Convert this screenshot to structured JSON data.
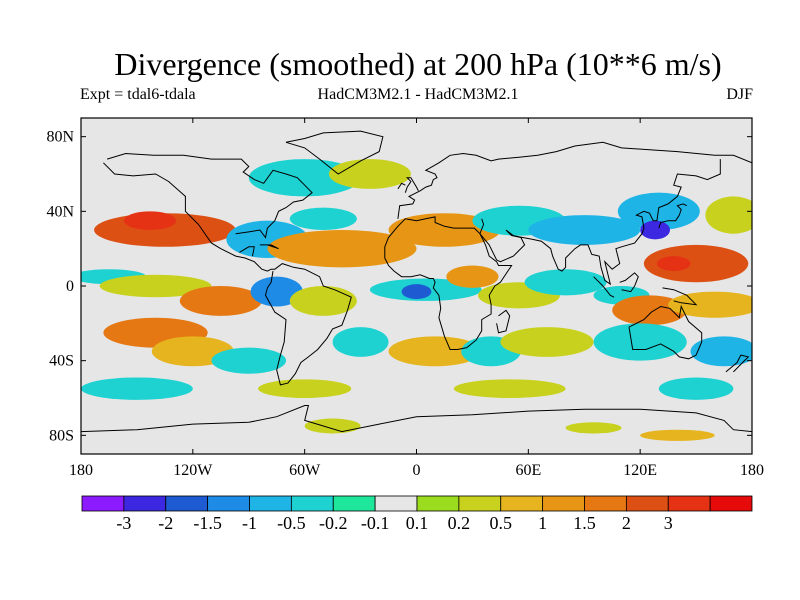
{
  "title": "Divergence (smoothed) at 200 hPa (10**6 m/s)",
  "experiment": "Expt = tdal6-tdala",
  "models": "HadCM3M2.1 - HadCM3M2.1",
  "season": "DJF",
  "axes": {
    "lat_ticks": [
      {
        "value": 80,
        "label": "80N"
      },
      {
        "value": 40,
        "label": "40N"
      },
      {
        "value": 0,
        "label": "0"
      },
      {
        "value": -40,
        "label": "40S"
      },
      {
        "value": -80,
        "label": "80S"
      }
    ],
    "lon_ticks": [
      {
        "value": -180,
        "label": "180"
      },
      {
        "value": -120,
        "label": "120W"
      },
      {
        "value": -60,
        "label": "60W"
      },
      {
        "value": 0,
        "label": "0"
      },
      {
        "value": 60,
        "label": "60E"
      },
      {
        "value": 120,
        "label": "120E"
      },
      {
        "value": 180,
        "label": "180"
      }
    ],
    "lon_range": [
      -180,
      180
    ],
    "lat_range": [
      -90,
      90
    ]
  },
  "colorbar": {
    "colors": [
      "#8c1cff",
      "#3c28e0",
      "#1e5ad2",
      "#1e8ce6",
      "#1eb4e6",
      "#1ed2d2",
      "#1ee69b",
      "#e6e6e6",
      "#9bdc1e",
      "#c8d21e",
      "#e6b41e",
      "#e69614",
      "#e67814",
      "#dc5014",
      "#e63214",
      "#e60a0a"
    ],
    "labels": [
      "-3",
      "-2",
      "-1.5",
      "-1",
      "-0.5",
      "-0.2",
      "-0.1",
      "0.1",
      "0.2",
      "0.5",
      "1",
      "1.5",
      "2",
      "3"
    ]
  },
  "map_background": "#e6e6e6",
  "field_features": [
    {
      "lon": -135,
      "lat": 30,
      "rx": 38,
      "ry": 9,
      "value": 2.2
    },
    {
      "lon": -143,
      "lat": 35,
      "rx": 14,
      "ry": 5,
      "value": 3.0
    },
    {
      "lon": -60,
      "lat": 58,
      "rx": 30,
      "ry": 10,
      "value": -0.3
    },
    {
      "lon": -25,
      "lat": 60,
      "rx": 22,
      "ry": 8,
      "value": 0.3
    },
    {
      "lon": -80,
      "lat": 25,
      "rx": 22,
      "ry": 10,
      "value": -0.6
    },
    {
      "lon": -40,
      "lat": 20,
      "rx": 40,
      "ry": 10,
      "value": 1.2
    },
    {
      "lon": -50,
      "lat": 36,
      "rx": 18,
      "ry": 6,
      "value": -0.3
    },
    {
      "lon": 15,
      "lat": 30,
      "rx": 30,
      "ry": 9,
      "value": 1.0
    },
    {
      "lon": 55,
      "lat": 35,
      "rx": 25,
      "ry": 8,
      "value": -0.3
    },
    {
      "lon": 90,
      "lat": 30,
      "rx": 30,
      "ry": 8,
      "value": -0.6
    },
    {
      "lon": 130,
      "lat": 40,
      "rx": 22,
      "ry": 10,
      "value": -0.8
    },
    {
      "lon": 128,
      "lat": 30,
      "rx": 8,
      "ry": 5,
      "value": -2.2
    },
    {
      "lon": 150,
      "lat": 12,
      "rx": 28,
      "ry": 10,
      "value": 2.0
    },
    {
      "lon": 138,
      "lat": 12,
      "rx": 9,
      "ry": 4,
      "value": 3.0
    },
    {
      "lon": 170,
      "lat": 38,
      "rx": 15,
      "ry": 10,
      "value": 0.3
    },
    {
      "lon": -165,
      "lat": 5,
      "rx": 20,
      "ry": 4,
      "value": -0.3
    },
    {
      "lon": -140,
      "lat": 0,
      "rx": 30,
      "ry": 6,
      "value": 0.3
    },
    {
      "lon": -105,
      "lat": -8,
      "rx": 22,
      "ry": 8,
      "value": 1.5
    },
    {
      "lon": -75,
      "lat": -3,
      "rx": 14,
      "ry": 8,
      "value": -1.2
    },
    {
      "lon": -50,
      "lat": -8,
      "rx": 18,
      "ry": 8,
      "value": 0.4
    },
    {
      "lon": 5,
      "lat": -2,
      "rx": 30,
      "ry": 6,
      "value": -0.5
    },
    {
      "lon": 0,
      "lat": -3,
      "rx": 8,
      "ry": 4,
      "value": -1.8
    },
    {
      "lon": 30,
      "lat": 5,
      "rx": 14,
      "ry": 6,
      "value": 1.0
    },
    {
      "lon": 55,
      "lat": -5,
      "rx": 22,
      "ry": 7,
      "value": 0.3
    },
    {
      "lon": 80,
      "lat": 2,
      "rx": 22,
      "ry": 7,
      "value": -0.5
    },
    {
      "lon": 110,
      "lat": -5,
      "rx": 15,
      "ry": 5,
      "value": -0.4
    },
    {
      "lon": 125,
      "lat": -13,
      "rx": 20,
      "ry": 8,
      "value": 1.8
    },
    {
      "lon": 160,
      "lat": -10,
      "rx": 25,
      "ry": 7,
      "value": 0.6
    },
    {
      "lon": -140,
      "lat": -25,
      "rx": 28,
      "ry": 8,
      "value": 1.8
    },
    {
      "lon": -120,
      "lat": -35,
      "rx": 22,
      "ry": 8,
      "value": 0.5
    },
    {
      "lon": -90,
      "lat": -40,
      "rx": 20,
      "ry": 7,
      "value": -0.4
    },
    {
      "lon": -30,
      "lat": -30,
      "rx": 15,
      "ry": 8,
      "value": -0.3
    },
    {
      "lon": 10,
      "lat": -35,
      "rx": 25,
      "ry": 8,
      "value": 0.6
    },
    {
      "lon": 40,
      "lat": -35,
      "rx": 16,
      "ry": 8,
      "value": -0.4
    },
    {
      "lon": 70,
      "lat": -30,
      "rx": 25,
      "ry": 8,
      "value": 0.3
    },
    {
      "lon": 120,
      "lat": -30,
      "rx": 25,
      "ry": 10,
      "value": -0.4
    },
    {
      "lon": 165,
      "lat": -35,
      "rx": 18,
      "ry": 8,
      "value": -0.6
    },
    {
      "lon": -150,
      "lat": -55,
      "rx": 30,
      "ry": 6,
      "value": -0.3
    },
    {
      "lon": -60,
      "lat": -55,
      "rx": 25,
      "ry": 5,
      "value": 0.3
    },
    {
      "lon": 50,
      "lat": -55,
      "rx": 30,
      "ry": 5,
      "value": 0.3
    },
    {
      "lon": 150,
      "lat": -55,
      "rx": 20,
      "ry": 6,
      "value": -0.3
    },
    {
      "lon": -45,
      "lat": -75,
      "rx": 15,
      "ry": 4,
      "value": 0.25
    },
    {
      "lon": 95,
      "lat": -76,
      "rx": 15,
      "ry": 3,
      "value": 0.25
    },
    {
      "lon": 140,
      "lat": -80,
      "rx": 20,
      "ry": 3,
      "value": 0.6
    }
  ],
  "coastlines": [
    [
      [
        -168,
        66
      ],
      [
        -162,
        60
      ],
      [
        -152,
        59
      ],
      [
        -140,
        60
      ],
      [
        -133,
        56
      ],
      [
        -124,
        48
      ],
      [
        -124,
        40
      ],
      [
        -117,
        33
      ],
      [
        -110,
        23
      ],
      [
        -105,
        20
      ],
      [
        -97,
        16
      ],
      [
        -92,
        15
      ],
      [
        -87,
        13
      ],
      [
        -83,
        9
      ],
      [
        -80,
        8
      ],
      [
        -78,
        9
      ],
      [
        -76,
        9
      ],
      [
        -72,
        12
      ],
      [
        -66,
        10
      ],
      [
        -60,
        9
      ],
      [
        -52,
        5
      ],
      [
        -50,
        0
      ],
      [
        -44,
        -2
      ],
      [
        -35,
        -6
      ],
      [
        -37,
        -13
      ],
      [
        -40,
        -21
      ],
      [
        -45,
        -23
      ],
      [
        -48,
        -28
      ],
      [
        -53,
        -34
      ],
      [
        -58,
        -38
      ],
      [
        -62,
        -41
      ],
      [
        -65,
        -47
      ],
      [
        -69,
        -52
      ],
      [
        -73,
        -53
      ],
      [
        -75,
        -45
      ],
      [
        -73,
        -37
      ],
      [
        -71,
        -30
      ],
      [
        -70,
        -18
      ],
      [
        -76,
        -14
      ],
      [
        -81,
        -5
      ],
      [
        -80,
        -1
      ],
      [
        -78,
        2
      ],
      [
        -77,
        8
      ]
    ],
    [
      [
        -97,
        28
      ],
      [
        -90,
        29
      ],
      [
        -84,
        30
      ],
      [
        -81,
        26
      ],
      [
        -80,
        31
      ],
      [
        -76,
        35
      ],
      [
        -74,
        40
      ],
      [
        -70,
        42
      ],
      [
        -66,
        45
      ],
      [
        -61,
        46
      ],
      [
        -56,
        50
      ],
      [
        -60,
        54
      ],
      [
        -64,
        58
      ],
      [
        -70,
        60
      ],
      [
        -77,
        62
      ],
      [
        -82,
        55
      ],
      [
        -87,
        57
      ],
      [
        -93,
        61
      ],
      [
        -90,
        64
      ],
      [
        -94,
        68
      ],
      [
        -110,
        68
      ],
      [
        -125,
        70
      ],
      [
        -141,
        70
      ],
      [
        -156,
        71
      ],
      [
        -166,
        68
      ]
    ],
    [
      [
        -95,
        18
      ],
      [
        -90,
        21
      ],
      [
        -87,
        21
      ],
      [
        -88,
        16
      ]
    ],
    [
      [
        -52,
        68
      ],
      [
        -42,
        60
      ],
      [
        -30,
        67
      ],
      [
        -20,
        72
      ],
      [
        -18,
        80
      ],
      [
        -30,
        83
      ],
      [
        -50,
        82
      ],
      [
        -60,
        79
      ],
      [
        -70,
        77
      ],
      [
        -60,
        74
      ],
      [
        -52,
        68
      ]
    ],
    [
      [
        -10,
        36
      ],
      [
        -9,
        43
      ],
      [
        -2,
        44
      ],
      [
        -1,
        46
      ],
      [
        -4,
        48
      ],
      [
        2,
        51
      ],
      [
        5,
        53
      ],
      [
        8,
        54
      ],
      [
        9,
        57
      ],
      [
        11,
        58
      ],
      [
        10,
        60
      ],
      [
        5,
        62
      ],
      [
        12,
        66
      ],
      [
        18,
        70
      ],
      [
        25,
        71
      ],
      [
        32,
        70
      ],
      [
        40,
        67
      ],
      [
        44,
        68
      ],
      [
        55,
        69
      ],
      [
        65,
        70
      ],
      [
        75,
        72
      ],
      [
        85,
        75
      ],
      [
        100,
        77
      ],
      [
        110,
        74
      ],
      [
        125,
        73
      ],
      [
        140,
        72
      ],
      [
        160,
        70
      ],
      [
        170,
        70
      ],
      [
        180,
        66
      ]
    ],
    [
      [
        -6,
        36
      ],
      [
        -10,
        32
      ],
      [
        -15,
        26
      ],
      [
        -17,
        21
      ],
      [
        -17,
        15
      ],
      [
        -15,
        11
      ],
      [
        -12,
        8
      ],
      [
        -8,
        5
      ],
      [
        -3,
        5
      ],
      [
        2,
        6
      ],
      [
        7,
        4
      ],
      [
        9,
        4
      ],
      [
        10,
        2
      ],
      [
        9,
        -1
      ],
      [
        12,
        -5
      ],
      [
        13,
        -12
      ],
      [
        12,
        -17
      ],
      [
        15,
        -27
      ],
      [
        18,
        -34
      ],
      [
        22,
        -34
      ],
      [
        27,
        -33
      ],
      [
        32,
        -29
      ],
      [
        35,
        -24
      ],
      [
        35,
        -18
      ],
      [
        40,
        -15
      ],
      [
        40,
        -10
      ],
      [
        39,
        -5
      ],
      [
        42,
        0
      ],
      [
        45,
        2
      ],
      [
        51,
        11
      ],
      [
        44,
        11
      ],
      [
        43,
        13
      ],
      [
        39,
        16
      ],
      [
        37,
        22
      ],
      [
        34,
        28
      ],
      [
        31,
        31
      ],
      [
        26,
        31
      ],
      [
        20,
        31
      ],
      [
        15,
        32
      ],
      [
        10,
        34
      ],
      [
        10,
        37
      ],
      [
        5,
        36
      ],
      [
        0,
        35
      ],
      [
        -6,
        36
      ]
    ],
    [
      [
        44,
        -16
      ],
      [
        48,
        -13
      ],
      [
        50,
        -16
      ],
      [
        48,
        -24
      ],
      [
        44,
        -25
      ],
      [
        43,
        -20
      ]
    ],
    [
      [
        35,
        36
      ],
      [
        36,
        33
      ],
      [
        34,
        28
      ],
      [
        39,
        22
      ],
      [
        43,
        14
      ],
      [
        45,
        13
      ],
      [
        52,
        16
      ],
      [
        58,
        22
      ],
      [
        56,
        26
      ],
      [
        51,
        27
      ],
      [
        48,
        30
      ],
      [
        52,
        27
      ],
      [
        57,
        26
      ],
      [
        62,
        25
      ],
      [
        67,
        24
      ],
      [
        72,
        20
      ],
      [
        73,
        16
      ],
      [
        76,
        9
      ],
      [
        78,
        8
      ],
      [
        80,
        10
      ],
      [
        80,
        15
      ],
      [
        85,
        20
      ],
      [
        88,
        22
      ],
      [
        92,
        22
      ],
      [
        94,
        17
      ],
      [
        98,
        16
      ],
      [
        99,
        10
      ],
      [
        101,
        3
      ],
      [
        104,
        1
      ],
      [
        103,
        5
      ],
      [
        101,
        13
      ],
      [
        105,
        9
      ],
      [
        109,
        12
      ],
      [
        107,
        20
      ],
      [
        110,
        21
      ],
      [
        117,
        23
      ],
      [
        121,
        28
      ],
      [
        122,
        31
      ],
      [
        121,
        37
      ],
      [
        118,
        38
      ],
      [
        122,
        40
      ],
      [
        125,
        39
      ],
      [
        127,
        35
      ],
      [
        129,
        35
      ],
      [
        130,
        42
      ],
      [
        135,
        44
      ],
      [
        140,
        48
      ],
      [
        142,
        53
      ],
      [
        138,
        54
      ],
      [
        140,
        60
      ],
      [
        150,
        59
      ],
      [
        156,
        57
      ],
      [
        163,
        60
      ],
      [
        163,
        68
      ]
    ],
    [
      [
        130,
        31
      ],
      [
        131,
        34
      ],
      [
        135,
        35
      ],
      [
        139,
        35
      ],
      [
        141,
        38
      ],
      [
        142,
        41
      ],
      [
        140,
        43
      ],
      [
        143,
        44
      ],
      [
        145,
        43
      ]
    ],
    [
      [
        114,
        -22
      ],
      [
        116,
        -34
      ],
      [
        123,
        -34
      ],
      [
        131,
        -31
      ],
      [
        138,
        -35
      ],
      [
        141,
        -38
      ],
      [
        146,
        -39
      ],
      [
        150,
        -37
      ],
      [
        153,
        -30
      ],
      [
        153,
        -25
      ],
      [
        146,
        -19
      ],
      [
        142,
        -11
      ],
      [
        141,
        -17
      ],
      [
        136,
        -12
      ],
      [
        131,
        -11
      ],
      [
        126,
        -14
      ],
      [
        122,
        -18
      ],
      [
        114,
        -22
      ]
    ],
    [
      [
        95,
        5
      ],
      [
        100,
        0
      ],
      [
        104,
        -5
      ],
      [
        106,
        -6
      ]
    ],
    [
      [
        109,
        2
      ],
      [
        112,
        3
      ],
      [
        117,
        7
      ],
      [
        119,
        5
      ],
      [
        117,
        0
      ],
      [
        115,
        -3
      ],
      [
        110,
        -2
      ]
    ],
    [
      [
        132,
        -1
      ],
      [
        138,
        -2
      ],
      [
        145,
        -5
      ],
      [
        150,
        -10
      ],
      [
        142,
        -9
      ],
      [
        138,
        -8
      ]
    ],
    [
      [
        166,
        -46
      ],
      [
        172,
        -41
      ],
      [
        174,
        -37
      ],
      [
        178,
        -38
      ],
      [
        174,
        -42
      ],
      [
        170,
        -46
      ]
    ],
    [
      [
        -180,
        -78
      ],
      [
        -150,
        -77
      ],
      [
        -120,
        -74
      ],
      [
        -90,
        -73
      ],
      [
        -75,
        -70
      ],
      [
        -60,
        -64
      ],
      [
        -58,
        -64
      ],
      [
        -60,
        -72
      ],
      [
        -40,
        -78
      ],
      [
        -20,
        -74
      ],
      [
        0,
        -70
      ],
      [
        30,
        -69
      ],
      [
        60,
        -67
      ],
      [
        90,
        -66
      ],
      [
        120,
        -66
      ],
      [
        150,
        -68
      ],
      [
        165,
        -72
      ],
      [
        170,
        -77
      ],
      [
        180,
        -78
      ]
    ],
    [
      [
        -6,
        50
      ],
      [
        -5,
        53
      ],
      [
        -3,
        56
      ],
      [
        -5,
        58
      ],
      [
        -3,
        58
      ],
      [
        0,
        53
      ],
      [
        1,
        51
      ]
    ],
    [
      [
        -10,
        52
      ],
      [
        -8,
        55
      ],
      [
        -6,
        54
      ]
    ],
    [
      [
        -80,
        22
      ],
      [
        -74,
        20
      ],
      [
        -78,
        22
      ],
      [
        -84,
        22
      ]
    ]
  ]
}
